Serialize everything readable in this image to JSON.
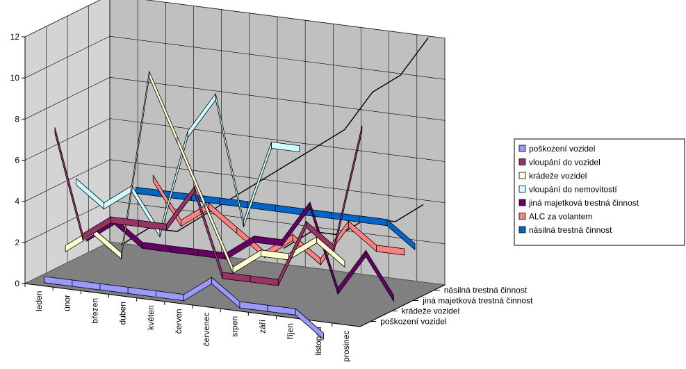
{
  "chart_data": {
    "type": "line",
    "ylim": [
      0,
      12
    ],
    "yticks": [
      "0",
      "2",
      "4",
      "6",
      "8",
      "10",
      "12"
    ],
    "categories": [
      "leden",
      "únor",
      "březen",
      "duben",
      "květen",
      "červen",
      "červenec",
      "srpen",
      "září",
      "říjen",
      "listopad",
      "prosinec"
    ],
    "depth_labels": [
      "poškození vozidel",
      "krádeže vozidel",
      "jiná majetková trestná činnost",
      "násilná trestná činnost"
    ],
    "legend_position": "right",
    "grid": true,
    "series": [
      {
        "name": "poškození vozidel",
        "color": "#9999ff",
        "values": [
          0,
          0,
          0,
          0,
          0,
          0,
          1,
          0,
          0,
          0,
          -1,
          null
        ]
      },
      {
        "name": "vloupání do vozidel",
        "color": "#993366",
        "values": [
          7,
          2,
          3,
          3,
          3,
          5,
          1,
          1,
          1,
          4,
          3,
          9
        ]
      },
      {
        "name": "krádeže vozidel",
        "color": "#ffffcc",
        "values": [
          1,
          2,
          1,
          10,
          7,
          4,
          1,
          2,
          2,
          3,
          2,
          null
        ]
      },
      {
        "name": "vloupání do nemovitostí",
        "color": "#ccffff",
        "values": [
          4,
          3,
          4,
          2,
          7,
          9,
          3,
          7,
          7,
          null,
          null,
          null
        ]
      },
      {
        "name": "jiná majetková trestná činnost",
        "color": "#660066",
        "values": [
          1,
          2,
          1,
          1,
          1,
          1,
          2,
          2,
          4,
          0,
          2,
          0
        ]
      },
      {
        "name": "ALC za volantem",
        "color": "#ff8080",
        "values": [
          null,
          null,
          4,
          2,
          3,
          2,
          1,
          2,
          1,
          3,
          2,
          2
        ]
      },
      {
        "name": "násilná trestná činnost",
        "color": "#0066cc",
        "values": [
          null,
          3,
          3,
          3,
          3,
          3,
          3,
          3,
          3,
          3,
          3,
          2
        ]
      }
    ],
    "extra_lines": [
      [
        0,
        1,
        1,
        2,
        3,
        4,
        5,
        6,
        7,
        9,
        10,
        12
      ],
      [
        null,
        null,
        null,
        null,
        null,
        null,
        1,
        2,
        2,
        3,
        3,
        4
      ]
    ]
  }
}
